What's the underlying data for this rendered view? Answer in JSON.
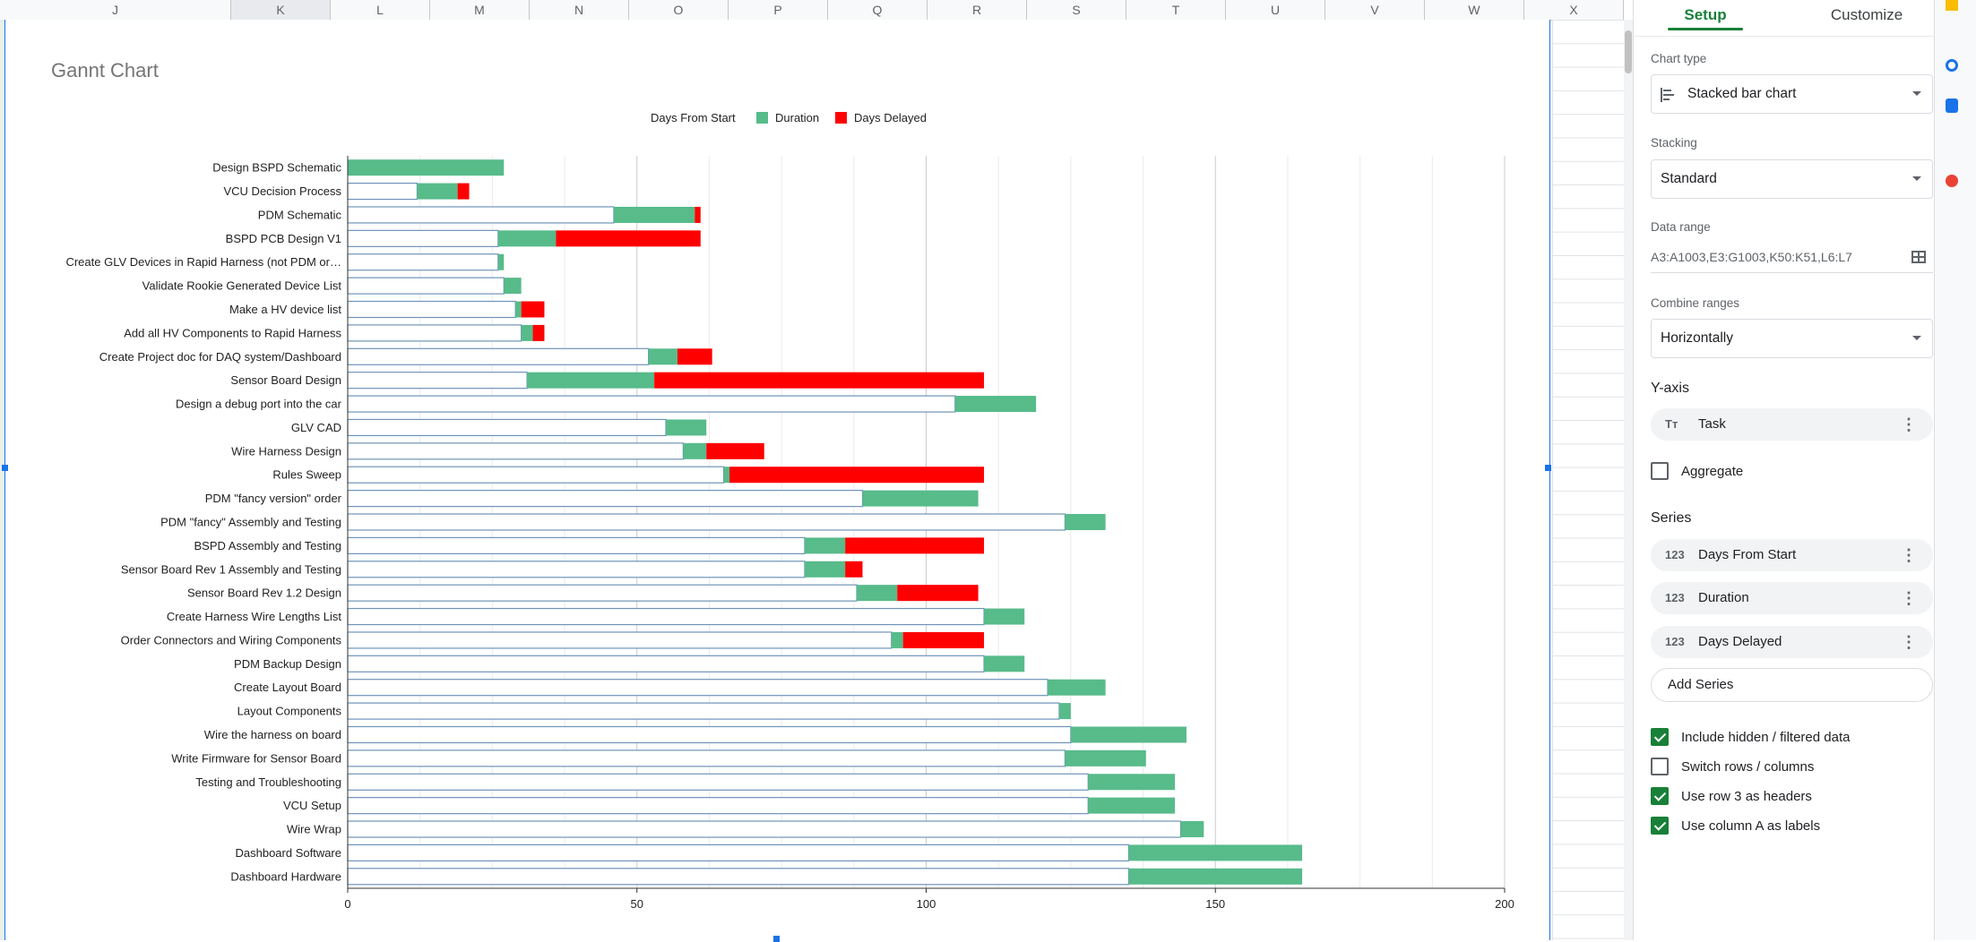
{
  "sheet": {
    "columns": [
      "J",
      "K",
      "L",
      "M",
      "N",
      "O",
      "P",
      "Q",
      "R",
      "S",
      "T",
      "U",
      "V",
      "W",
      "X"
    ],
    "selected_column": "K"
  },
  "chart_data": {
    "type": "bar",
    "orientation": "horizontal",
    "stacking": "standard",
    "title": "Gannt Chart",
    "legend_position": "top",
    "xlim": [
      0,
      200
    ],
    "xticks": [
      0,
      50,
      100,
      150,
      200
    ],
    "grid": true,
    "categories": [
      "Design BSPD Schematic",
      "VCU Decision Process",
      "PDM Schematic",
      "BSPD PCB Design V1",
      "Create GLV Devices in Rapid Harness (not PDM or…",
      "Validate Rookie Generated Device List",
      "Make a HV device list",
      "Add all HV Components to Rapid Harness",
      "Create Project doc for DAQ system/Dashboard",
      "Sensor Board Design",
      "Design a debug port into the car",
      "GLV CAD",
      "Wire Harness Design",
      "Rules Sweep",
      "PDM \"fancy version\" order",
      "PDM \"fancy\" Assembly and Testing",
      "BSPD Assembly and Testing",
      "Sensor Board  Rev 1 Assembly and Testing",
      "Sensor Board Rev 1.2 Design",
      "Create Harness Wire Lengths List",
      "Order Connectors and Wiring Components",
      "PDM Backup Design",
      "Create Layout Board",
      "Layout Components",
      "Wire the harness on board",
      "Write Firmware for Sensor Board",
      "Testing and Troubleshooting",
      "VCU Setup",
      "Wire Wrap",
      "Dashboard Software",
      "Dashboard Hardware"
    ],
    "series": [
      {
        "name": "Days From Start",
        "color": "#ffffff",
        "values": [
          0,
          12,
          46,
          26,
          26,
          27,
          29,
          30,
          52,
          31,
          105,
          55,
          58,
          65,
          89,
          124,
          79,
          79,
          88,
          110,
          94,
          110,
          121,
          123,
          125,
          124,
          128,
          128,
          144,
          135,
          135
        ]
      },
      {
        "name": "Duration",
        "color": "#57bb8a",
        "values": [
          27,
          7,
          14,
          10,
          1,
          3,
          1,
          2,
          5,
          22,
          14,
          7,
          4,
          1,
          20,
          7,
          7,
          7,
          7,
          7,
          2,
          7,
          10,
          2,
          20,
          14,
          15,
          15,
          4,
          30,
          30
        ]
      },
      {
        "name": "Days Delayed",
        "color": "#ff0000",
        "values": [
          0,
          2,
          1,
          25,
          0,
          0,
          4,
          2,
          6,
          57,
          0,
          0,
          10,
          44,
          0,
          0,
          24,
          3,
          14,
          0,
          14,
          0,
          0,
          0,
          0,
          0,
          0,
          0,
          0,
          0,
          0
        ]
      }
    ]
  },
  "panel": {
    "tabs": [
      "Setup",
      "Customize"
    ],
    "chart_type_label": "Chart type",
    "chart_type_value": "Stacked bar chart",
    "stacking_label": "Stacking",
    "stacking_value": "Standard",
    "data_range_label": "Data range",
    "data_range_value": "A3:A1003,E3:G1003,K50:K51,L6:L7",
    "combine_label": "Combine ranges",
    "combine_value": "Horizontally",
    "yaxis_heading": "Y-axis",
    "yaxis_chip": {
      "icon": "Tт",
      "label": "Task"
    },
    "aggregate_label": "Aggregate",
    "aggregate_checked": false,
    "series_heading": "Series",
    "series_chips": [
      {
        "icon": "123",
        "label": "Days From Start"
      },
      {
        "icon": "123",
        "label": "Duration"
      },
      {
        "icon": "123",
        "label": "Days Delayed"
      }
    ],
    "add_series_label": "Add Series",
    "options": [
      {
        "label": "Include hidden / filtered data",
        "checked": true
      },
      {
        "label": "Switch rows / columns",
        "checked": false
      },
      {
        "label": "Use row 3 as headers",
        "checked": true
      },
      {
        "label": "Use column A as labels",
        "checked": true
      }
    ]
  }
}
